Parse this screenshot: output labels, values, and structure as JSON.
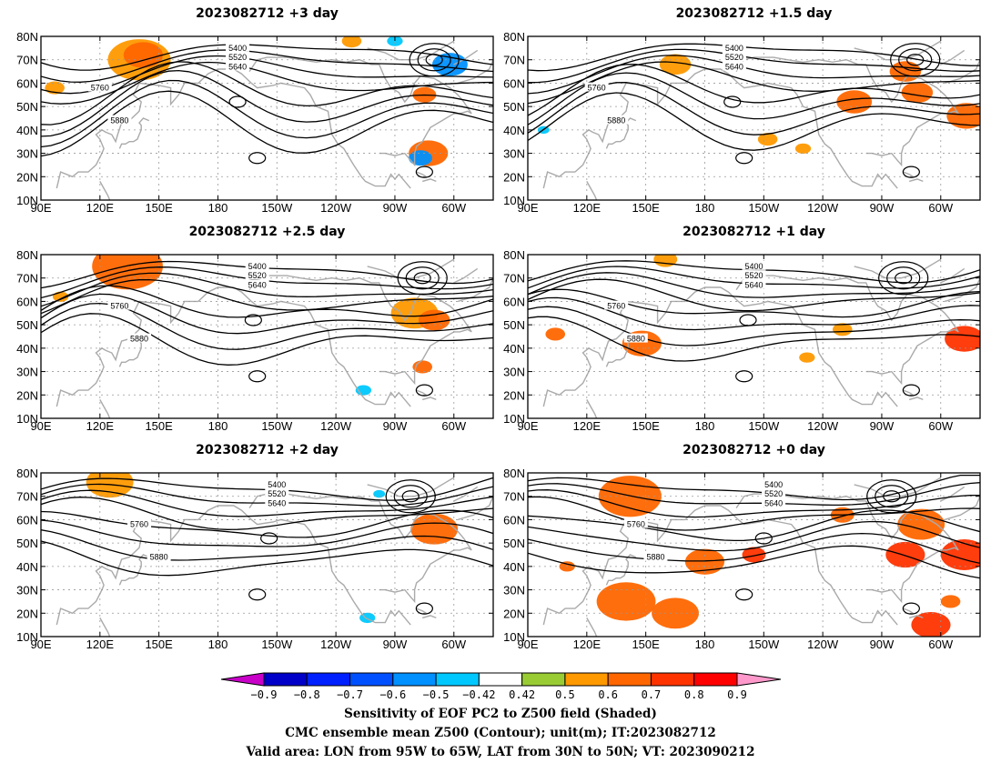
{
  "panels": [
    {
      "title": "2023082712 +3 day",
      "col": 0,
      "row": 0,
      "shade": [
        {
          "lon": 140,
          "lat": 70,
          "r": 16,
          "v": 0.55
        },
        {
          "lon": 142,
          "lat": 72,
          "r": 10,
          "v": 0.65
        },
        {
          "lon": 285,
          "lat": 55,
          "r": 6,
          "v": 0.6
        },
        {
          "lon": 287,
          "lat": 30,
          "r": 10,
          "v": 0.6
        },
        {
          "lon": 283,
          "lat": 28,
          "r": 6,
          "v": -0.55
        },
        {
          "lon": 298,
          "lat": 68,
          "r": 9,
          "v": -0.55
        },
        {
          "lon": 270,
          "lat": 78,
          "r": 4,
          "v": -0.5
        },
        {
          "lon": 97,
          "lat": 58,
          "r": 5,
          "v": 0.5
        },
        {
          "lon": 248,
          "lat": 78,
          "r": 5,
          "v": 0.5
        }
      ]
    },
    {
      "title": "2023082712 +1.5 day",
      "col": 1,
      "row": 0,
      "shade": [
        {
          "lon": 256,
          "lat": 52,
          "r": 9,
          "v": 0.6
        },
        {
          "lon": 288,
          "lat": 56,
          "r": 8,
          "v": 0.6
        },
        {
          "lon": 282,
          "lat": 65,
          "r": 8,
          "v": 0.6
        },
        {
          "lon": 313,
          "lat": 46,
          "r": 10,
          "v": 0.6
        },
        {
          "lon": 165,
          "lat": 68,
          "r": 8,
          "v": 0.5
        },
        {
          "lon": 230,
          "lat": 32,
          "r": 4,
          "v": 0.5
        },
        {
          "lon": 98,
          "lat": 40,
          "r": 3,
          "v": -0.5
        },
        {
          "lon": 212,
          "lat": 36,
          "r": 5,
          "v": 0.5
        }
      ]
    },
    {
      "title": "2023082712 +2.5 day",
      "col": 0,
      "row": 1,
      "shade": [
        {
          "lon": 134,
          "lat": 75,
          "r": 18,
          "v": 0.6
        },
        {
          "lon": 280,
          "lat": 55,
          "r": 12,
          "v": 0.5
        },
        {
          "lon": 290,
          "lat": 52,
          "r": 8,
          "v": 0.6
        },
        {
          "lon": 284,
          "lat": 32,
          "r": 5,
          "v": 0.6
        },
        {
          "lon": 254,
          "lat": 22,
          "r": 4,
          "v": -0.5
        },
        {
          "lon": 100,
          "lat": 62,
          "r": 4,
          "v": 0.5
        }
      ]
    },
    {
      "title": "2023082712 +1 day",
      "col": 1,
      "row": 1,
      "shade": [
        {
          "lon": 104,
          "lat": 46,
          "r": 5,
          "v": 0.6
        },
        {
          "lon": 148,
          "lat": 42,
          "r": 10,
          "v": 0.6
        },
        {
          "lon": 312,
          "lat": 44,
          "r": 10,
          "v": 0.7
        },
        {
          "lon": 250,
          "lat": 48,
          "r": 5,
          "v": 0.5
        },
        {
          "lon": 160,
          "lat": 78,
          "r": 6,
          "v": 0.5
        },
        {
          "lon": 232,
          "lat": 36,
          "r": 4,
          "v": 0.5
        }
      ]
    },
    {
      "title": "2023082712 +2 day",
      "col": 0,
      "row": 2,
      "shade": [
        {
          "lon": 125,
          "lat": 76,
          "r": 12,
          "v": 0.5
        },
        {
          "lon": 290,
          "lat": 56,
          "r": 12,
          "v": 0.6
        },
        {
          "lon": 256,
          "lat": 18,
          "r": 4,
          "v": -0.5
        },
        {
          "lon": 262,
          "lat": 71,
          "r": 3,
          "v": -0.5
        }
      ]
    },
    {
      "title": "2023082712 +0 day",
      "col": 1,
      "row": 2,
      "shade": [
        {
          "lon": 142,
          "lat": 70,
          "r": 16,
          "v": 0.6
        },
        {
          "lon": 140,
          "lat": 25,
          "r": 15,
          "v": 0.65
        },
        {
          "lon": 165,
          "lat": 20,
          "r": 12,
          "v": 0.6
        },
        {
          "lon": 180,
          "lat": 42,
          "r": 10,
          "v": 0.6
        },
        {
          "lon": 205,
          "lat": 45,
          "r": 6,
          "v": 0.7
        },
        {
          "lon": 282,
          "lat": 45,
          "r": 10,
          "v": 0.7
        },
        {
          "lon": 290,
          "lat": 58,
          "r": 12,
          "v": 0.6
        },
        {
          "lon": 312,
          "lat": 45,
          "r": 12,
          "v": 0.7
        },
        {
          "lon": 295,
          "lat": 15,
          "r": 10,
          "v": 0.7
        },
        {
          "lon": 250,
          "lat": 62,
          "r": 6,
          "v": 0.6
        },
        {
          "lon": 305,
          "lat": 25,
          "r": 5,
          "v": 0.6
        },
        {
          "lon": 110,
          "lat": 40,
          "r": 4,
          "v": 0.6
        }
      ]
    }
  ],
  "lon_ticks": [
    "90E",
    "120E",
    "150E",
    "180",
    "150W",
    "120W",
    "90W",
    "60W"
  ],
  "lat_ticks": [
    "80N",
    "70N",
    "60N",
    "50N",
    "40N",
    "30N",
    "20N",
    "10N"
  ],
  "contour_levels": [
    "5400",
    "5520",
    "5640",
    "5760",
    "5880"
  ],
  "colorbar": {
    "labels": [
      "−0.9",
      "−0.8",
      "−0.7",
      "−0.6",
      "−0.5",
      "−0.42",
      "0.42",
      "0.5",
      "0.6",
      "0.7",
      "0.8",
      "0.9"
    ],
    "colors": [
      "#c800c8",
      "#0000c8",
      "#0020ff",
      "#0050ff",
      "#0090ff",
      "#00c8ff",
      "#ffffff",
      "#99cc33",
      "#ff9900",
      "#ff6600",
      "#ff3300",
      "#ff0000",
      "#ff99cc"
    ]
  },
  "footer": [
    "Sensitivity of EOF PC2 to Z500 field (Shaded)",
    "CMC ensemble mean Z500 (Contour); unit(m); IT:2023082712",
    "Valid area: LON from 95W to 65W, LAT from 30N to 50N; VT: 2023090212"
  ]
}
